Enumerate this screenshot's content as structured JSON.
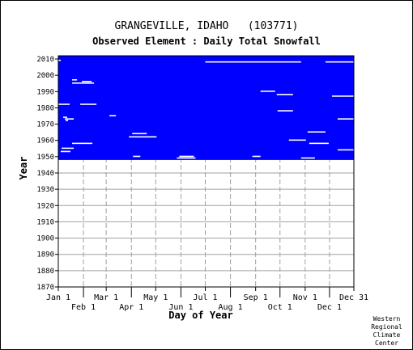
{
  "chart_data": {
    "type": "heatmap",
    "title": "GRANGEVILLE, IDAHO   (103771)",
    "subtitle": "Observed Element : Daily Total Snowfall",
    "xlabel": "Day of Year",
    "ylabel": "Year",
    "x_tick_labels_upper": [
      "Jan 1",
      "Mar 1",
      "May 1",
      "Jul 1",
      "Sep 1",
      "Nov 1",
      "Dec 31"
    ],
    "x_tick_labels_lower": [
      "Feb 1",
      "Apr 1",
      "Jun 1",
      "Aug 1",
      "Oct 1",
      "Dec 1"
    ],
    "x_tick_days_upper": [
      1,
      60,
      121,
      182,
      244,
      305,
      365
    ],
    "x_tick_days_lower": [
      32,
      91,
      152,
      213,
      274,
      335
    ],
    "xlim": [
      1,
      365
    ],
    "ylim": [
      1870,
      2012
    ],
    "y_ticks": [
      1870,
      1880,
      1890,
      1900,
      1910,
      1920,
      1930,
      1940,
      1950,
      1960,
      1970,
      1980,
      1990,
      2000,
      2010
    ],
    "grid": true,
    "data_color": "#0000ff",
    "missing_color": "#ffffff",
    "data_region": {
      "year_start": 1948,
      "year_end": 2012
    },
    "missing_gaps": [
      {
        "year": 2009,
        "day_start": 1,
        "day_end": 4
      },
      {
        "year": 2008,
        "day_start": 182,
        "day_end": 300
      },
      {
        "year": 2008,
        "day_start": 330,
        "day_end": 365
      },
      {
        "year": 1997,
        "day_start": 18,
        "day_end": 24
      },
      {
        "year": 1996,
        "day_start": 30,
        "day_end": 42
      },
      {
        "year": 1995,
        "day_start": 18,
        "day_end": 45
      },
      {
        "year": 1990,
        "day_start": 250,
        "day_end": 268
      },
      {
        "year": 1988,
        "day_start": 270,
        "day_end": 290
      },
      {
        "year": 1987,
        "day_start": 338,
        "day_end": 365
      },
      {
        "year": 1982,
        "day_start": 1,
        "day_end": 15
      },
      {
        "year": 1982,
        "day_start": 28,
        "day_end": 48
      },
      {
        "year": 1978,
        "day_start": 271,
        "day_end": 290
      },
      {
        "year": 1975,
        "day_start": 64,
        "day_end": 72
      },
      {
        "year": 1974,
        "day_start": 7,
        "day_end": 12
      },
      {
        "year": 1973,
        "day_start": 9,
        "day_end": 20
      },
      {
        "year": 1972,
        "day_start": 10,
        "day_end": 13
      },
      {
        "year": 1973,
        "day_start": 345,
        "day_end": 365
      },
      {
        "year": 1965,
        "day_start": 308,
        "day_end": 330
      },
      {
        "year": 1964,
        "day_start": 92,
        "day_end": 110
      },
      {
        "year": 1962,
        "day_start": 88,
        "day_end": 122
      },
      {
        "year": 1960,
        "day_start": 285,
        "day_end": 306
      },
      {
        "year": 1958,
        "day_start": 310,
        "day_end": 334
      },
      {
        "year": 1958,
        "day_start": 18,
        "day_end": 43
      },
      {
        "year": 1955,
        "day_start": 5,
        "day_end": 20
      },
      {
        "year": 1953,
        "day_start": 4,
        "day_end": 16
      },
      {
        "year": 1954,
        "day_start": 345,
        "day_end": 365
      },
      {
        "year": 1950,
        "day_start": 93,
        "day_end": 102
      },
      {
        "year": 1950,
        "day_start": 240,
        "day_end": 250
      },
      {
        "year": 1950,
        "day_start": 150,
        "day_end": 168
      },
      {
        "year": 1949,
        "day_start": 147,
        "day_end": 170
      },
      {
        "year": 1949,
        "day_start": 300,
        "day_end": 317
      }
    ],
    "credit_lines": [
      "Western",
      "Regional",
      "Climate",
      "Center"
    ]
  }
}
